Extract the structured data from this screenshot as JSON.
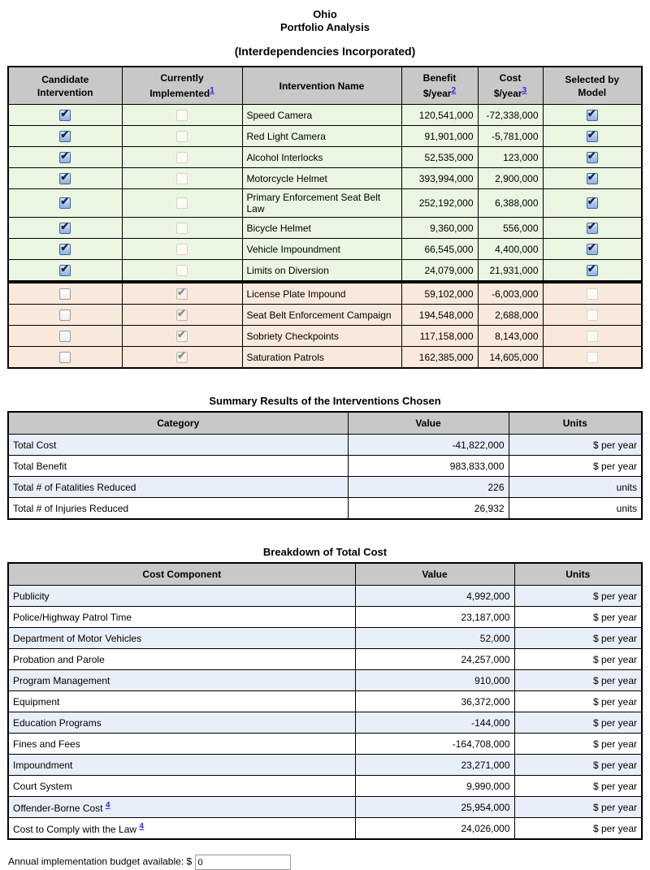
{
  "title": {
    "state": "Ohio",
    "analysis": "Portfolio Analysis",
    "subtitle": "(Interdependencies Incorporated)"
  },
  "interventions": {
    "headers": {
      "candidate": [
        "Candidate",
        "Intervention"
      ],
      "implemented": [
        "Currently",
        "Implemented"
      ],
      "implemented_footnote": "1",
      "name": "Intervention Name",
      "benefit": [
        "Benefit",
        "$/year"
      ],
      "benefit_footnote": "2",
      "cost": [
        "Cost",
        "$/year"
      ],
      "cost_footnote": "3",
      "selected": [
        "Selected by",
        "Model"
      ]
    },
    "rows": [
      {
        "name": "Speed Camera",
        "benefit": "120,541,000",
        "cost": "-72,338,000",
        "candidate": true,
        "implemented": false,
        "selected": true,
        "group": "candidate"
      },
      {
        "name": "Red Light Camera",
        "benefit": "91,901,000",
        "cost": "-5,781,000",
        "candidate": true,
        "implemented": false,
        "selected": true,
        "group": "candidate"
      },
      {
        "name": "Alcohol Interlocks",
        "benefit": "52,535,000",
        "cost": "123,000",
        "candidate": true,
        "implemented": false,
        "selected": true,
        "group": "candidate"
      },
      {
        "name": "Motorcycle Helmet",
        "benefit": "393,994,000",
        "cost": "2,900,000",
        "candidate": true,
        "implemented": false,
        "selected": true,
        "group": "candidate"
      },
      {
        "name": "Primary Enforcement Seat Belt Law",
        "benefit": "252,192,000",
        "cost": "6,388,000",
        "candidate": true,
        "implemented": false,
        "selected": true,
        "group": "candidate"
      },
      {
        "name": "Bicycle Helmet",
        "benefit": "9,360,000",
        "cost": "556,000",
        "candidate": true,
        "implemented": false,
        "selected": true,
        "group": "candidate"
      },
      {
        "name": "Vehicle Impoundment",
        "benefit": "66,545,000",
        "cost": "4,400,000",
        "candidate": true,
        "implemented": false,
        "selected": true,
        "group": "candidate"
      },
      {
        "name": "Limits on Diversion",
        "benefit": "24,079,000",
        "cost": "21,931,000",
        "candidate": true,
        "implemented": false,
        "selected": true,
        "group": "candidate"
      },
      {
        "name": "License Plate Impound",
        "benefit": "59,102,000",
        "cost": "-6,003,000",
        "candidate": false,
        "implemented": true,
        "selected": false,
        "group": "implemented"
      },
      {
        "name": "Seat Belt Enforcement Campaign",
        "benefit": "194,548,000",
        "cost": "2,688,000",
        "candidate": false,
        "implemented": true,
        "selected": false,
        "group": "implemented"
      },
      {
        "name": "Sobriety Checkpoints",
        "benefit": "117,158,000",
        "cost": "8,143,000",
        "candidate": false,
        "implemented": true,
        "selected": false,
        "group": "implemented"
      },
      {
        "name": "Saturation Patrols",
        "benefit": "162,385,000",
        "cost": "14,605,000",
        "candidate": false,
        "implemented": true,
        "selected": false,
        "group": "implemented"
      }
    ]
  },
  "summary": {
    "title": "Summary Results of the Interventions Chosen",
    "headers": [
      "Category",
      "Value",
      "Units"
    ],
    "rows": [
      {
        "label": "Total Cost",
        "value": "-41,822,000",
        "units": "$ per year"
      },
      {
        "label": "Total Benefit",
        "value": "983,833,000",
        "units": "$ per year"
      },
      {
        "label": "Total # of Fatalities Reduced",
        "value": "226",
        "units": "units"
      },
      {
        "label": "Total # of Injuries Reduced",
        "value": "26,932",
        "units": "units"
      }
    ]
  },
  "breakdown": {
    "title": "Breakdown of Total Cost",
    "headers": [
      "Cost Component",
      "Value",
      "Units"
    ],
    "rows": [
      {
        "label": "Publicity",
        "value": "4,992,000",
        "units": "$ per year"
      },
      {
        "label": "Police/Highway Patrol Time",
        "value": "23,187,000",
        "units": "$ per year"
      },
      {
        "label": "Department of Motor Vehicles",
        "value": "52,000",
        "units": "$ per year"
      },
      {
        "label": "Probation and Parole",
        "value": "24,257,000",
        "units": "$ per year"
      },
      {
        "label": "Program Management",
        "value": "910,000",
        "units": "$ per year"
      },
      {
        "label": "Equipment",
        "value": "36,372,000",
        "units": "$ per year"
      },
      {
        "label": "Education Programs",
        "value": "-144,000",
        "units": "$ per year"
      },
      {
        "label": "Fines and Fees",
        "value": "-164,708,000",
        "units": "$ per year"
      },
      {
        "label": "Impoundment",
        "value": "23,271,000",
        "units": "$ per year"
      },
      {
        "label": "Court System",
        "value": "9,990,000",
        "units": "$ per year"
      },
      {
        "label": "Offender-Borne Cost",
        "footnote": "4",
        "value": "25,954,000",
        "units": "$ per year"
      },
      {
        "label": "Cost to Comply with the Law",
        "footnote": "4",
        "value": "24,026,000",
        "units": "$ per year"
      }
    ]
  },
  "budget": {
    "label": "Annual implementation budget available: $",
    "value": "0"
  },
  "colors": {
    "header_bg": "#c8c8c8",
    "candidate_row_bg": "#eaf6e2",
    "implemented_row_bg": "#f8e9dc",
    "alt_row_bg": "#e9eff9",
    "link_blue": "#2b2bf0",
    "checkbox_blue": "#a9c4e9"
  }
}
